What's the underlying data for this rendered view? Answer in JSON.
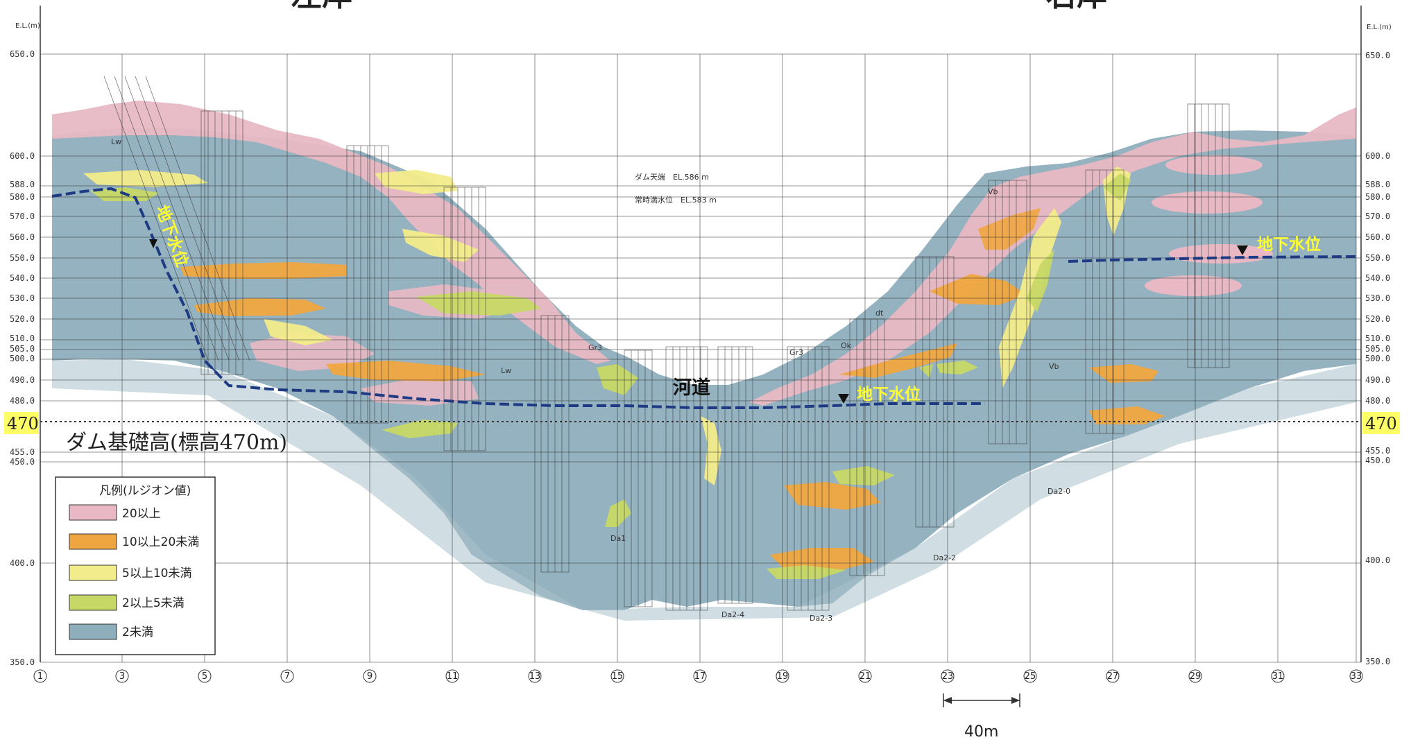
{
  "bank_labels": {
    "left": "左岸",
    "right": "右岸"
  },
  "axis": {
    "unit_left": "E.L.(m)",
    "unit_right": "E.L.(m)",
    "ticks": [
      "650.0",
      "600.0",
      "588.0",
      "580.0",
      "570.0",
      "560.0",
      "550.0",
      "540.0",
      "530.0",
      "520.0",
      "510.0",
      "505.0",
      "500.0",
      "490.0",
      "480.0",
      "455.0",
      "450.0",
      "400.0",
      "350.0"
    ],
    "right_ticks": [
      "650.0",
      "600.0",
      "588.0",
      "580.0",
      "570.0",
      "560.0",
      "550.0",
      "540.0",
      "530.0",
      "520.0",
      "510.0",
      "505.0",
      "500.0",
      "490.0",
      "480.0",
      "455.0",
      "450.0",
      "400.0",
      "350.0"
    ],
    "highlight_left": "470",
    "highlight_right": "470"
  },
  "columns": [
    "1",
    "3",
    "5",
    "7",
    "9",
    "11",
    "13",
    "15",
    "17",
    "19",
    "21",
    "23",
    "25",
    "27",
    "29",
    "31",
    "33"
  ],
  "annotations": {
    "dam_crest": "ダム天端　EL.586 m",
    "normal_water_level": "常時満水位　EL.583 m",
    "foundation": "ダム基礎高(標高470m)",
    "river": "河道",
    "groundwater_left": "地下水位",
    "groundwater_mid": "地下水位",
    "groundwater_right": "地下水位",
    "zone_labels": [
      "Da1",
      "Da2-4",
      "Da2-3",
      "Da2-2",
      "Da2-0",
      "Lw",
      "Lw",
      "Vb",
      "Vb",
      "Ok",
      "dt",
      "Gr3",
      "Gr3"
    ]
  },
  "legend": {
    "title": "凡例(ルジオン値)",
    "items": [
      {
        "label": "20以上",
        "color": "#e8b9c4"
      },
      {
        "label": "10以上20未満",
        "color": "#f0a640"
      },
      {
        "label": "5以上10未満",
        "color": "#f2ec8a"
      },
      {
        "label": "2以上5未満",
        "color": "#c7d866"
      },
      {
        "label": "2未満",
        "color": "#8eaebc"
      }
    ]
  },
  "scale_bar": {
    "label": "40m"
  },
  "colors": {
    "pink": "#e8b9c4",
    "orange": "#f0a640",
    "yellow": "#f2ec8a",
    "green": "#c7d866",
    "blue": "#8eaebc",
    "water_line": "#1f3b84",
    "highlight": "#ffff66"
  }
}
